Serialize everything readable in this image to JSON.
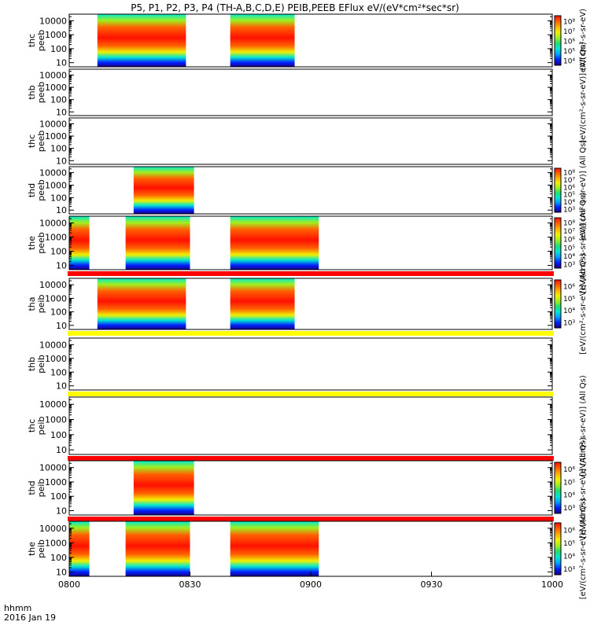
{
  "title": "P5, P1, P2, P3, P4 (TH-A,B,C,D,E) PEIB,PEEB EFlux eV/(eV*cm²*sec*sr)",
  "x_axis": {
    "ticks": [
      "0800",
      "0830",
      "0900",
      "0930",
      "1000"
    ],
    "corner_line1": "hhmm",
    "corner_line2": "2016 Jan 19"
  },
  "colorbar_labels": {
    "eflux": "eV/(cm²-s-sr-eV)",
    "eflux_allqs": "[eV/(cm²-s-sr-eV)] (All Qs)"
  },
  "colors": {
    "spectrogram": [
      "#1a0080",
      "#0020ff",
      "#00a0ff",
      "#00e8d0",
      "#20e070",
      "#a0f020",
      "#f0f000",
      "#ffb000",
      "#ff6000",
      "#ff1000"
    ],
    "flag_red": "#ff0000",
    "flag_yellow": "#ffff00"
  },
  "chart_data": {
    "type": "heatmap",
    "x_range_minutes": [
      0,
      120
    ],
    "y_range_ev": [
      5,
      30000
    ],
    "y_scale": "log",
    "y_tick_labels": [
      "10",
      "100",
      "1000",
      "10000"
    ],
    "panels": [
      {
        "label": [
          "thc",
          "peeb"
        ],
        "intervals": [
          [
            7,
            29
          ],
          [
            40,
            56
          ]
        ],
        "colorbar": {
          "ticks": [
            "10⁴",
            "10⁵",
            "10⁶",
            "10⁷",
            "10⁸"
          ],
          "label_key": "eflux"
        }
      },
      {
        "label": [
          "thb",
          "peeb"
        ],
        "intervals": [],
        "colorbar": {
          "ticks": [],
          "label_key": "eflux_allqs"
        }
      },
      {
        "label": [
          "thc",
          "peeb"
        ],
        "intervals": []
      },
      {
        "label": [
          "thd",
          "peeb"
        ],
        "intervals": [
          [
            16,
            31
          ]
        ],
        "colorbar": {
          "ticks": [
            "10³",
            "10⁴",
            "10⁵",
            "10⁶",
            "10⁷",
            "10⁸"
          ],
          "label_key": "eflux_allqs"
        }
      },
      {
        "label": [
          "the",
          "peeb"
        ],
        "intervals": [
          [
            0,
            5
          ],
          [
            14,
            30
          ],
          [
            40,
            62
          ]
        ],
        "colorbar": {
          "ticks": [
            "10³",
            "10⁴",
            "10⁵",
            "10⁶",
            "10⁷",
            "10⁸"
          ],
          "label_key": "eflux_allqs"
        },
        "flag_below": "red"
      },
      {
        "label": [
          "tha",
          "peib"
        ],
        "intervals": [
          [
            7,
            29
          ],
          [
            40,
            56
          ]
        ],
        "colorbar": {
          "ticks": [
            "10³",
            "10⁴",
            "10⁵",
            "10⁶"
          ],
          "label_key": "eflux_allqs"
        },
        "flag_below": "yellow"
      },
      {
        "label": [
          "thb",
          "peib"
        ],
        "intervals": [],
        "flag_below": "yellow"
      },
      {
        "label": [
          "thc",
          "peib"
        ],
        "intervals": [],
        "flag_below": "red",
        "colorbar": {
          "ticks": [],
          "label_key": "eflux_allqs"
        }
      },
      {
        "label": [
          "thd",
          "peib"
        ],
        "intervals": [
          [
            16,
            31
          ]
        ],
        "colorbar": {
          "ticks": [
            "10³",
            "10⁴",
            "10⁵",
            "10⁶"
          ],
          "label_key": "eflux_allqs"
        },
        "flag_below": "red"
      },
      {
        "label": [
          "the",
          "peib"
        ],
        "intervals": [
          [
            0,
            5
          ],
          [
            14,
            30
          ],
          [
            40,
            62
          ]
        ],
        "colorbar": {
          "ticks": [
            "10³",
            "10⁴",
            "10⁵",
            "10⁶"
          ],
          "label_key": "eflux_allqs"
        }
      }
    ]
  }
}
